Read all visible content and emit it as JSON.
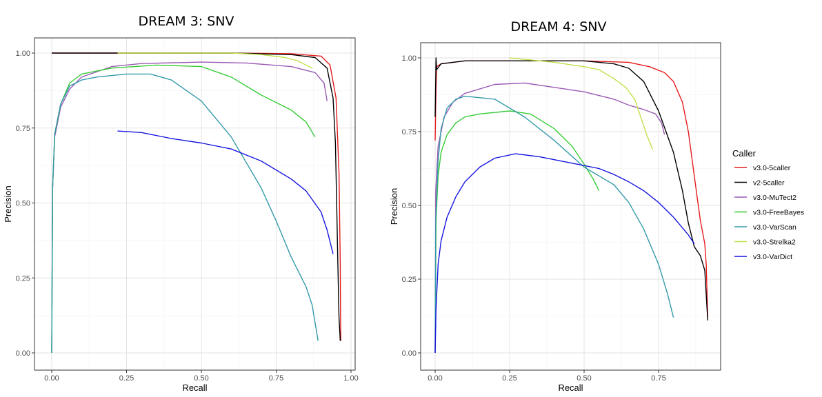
{
  "chart_data": [
    {
      "type": "line",
      "title": "DREAM 3: SNV",
      "xlabel": "Recall",
      "ylabel": "Precision",
      "xlim": [
        0,
        1
      ],
      "ylim": [
        0,
        1
      ],
      "xticks": [
        "0.00",
        "0.25",
        "0.50",
        "0.75",
        "1.00"
      ],
      "yticks": [
        "0.00",
        "0.25",
        "0.50",
        "0.75",
        "1.00"
      ],
      "grid": true,
      "series": [
        {
          "name": "v3.0-5caller",
          "color": "#e41a1c",
          "x": [
            0.0,
            0.3,
            0.6,
            0.8,
            0.9,
            0.93,
            0.95,
            0.96,
            0.962,
            0.964,
            0.965,
            0.966
          ],
          "y": [
            1.0,
            1.0,
            1.0,
            0.998,
            0.99,
            0.96,
            0.85,
            0.6,
            0.45,
            0.3,
            0.15,
            0.04
          ]
        },
        {
          "name": "v2-5caller",
          "color": "#000000",
          "x": [
            0.0,
            0.3,
            0.6,
            0.8,
            0.88,
            0.92,
            0.94,
            0.948,
            0.952,
            0.956,
            0.96,
            0.964
          ],
          "y": [
            1.0,
            1.0,
            1.0,
            0.995,
            0.985,
            0.95,
            0.85,
            0.7,
            0.5,
            0.3,
            0.12,
            0.04
          ]
        },
        {
          "name": "v3.0-MuTect2",
          "color": "#9b59b6",
          "x": [
            0.0,
            0.003,
            0.01,
            0.03,
            0.06,
            0.1,
            0.2,
            0.3,
            0.5,
            0.65,
            0.8,
            0.88,
            0.91,
            0.92
          ],
          "y": [
            0.0,
            0.55,
            0.72,
            0.82,
            0.88,
            0.92,
            0.955,
            0.965,
            0.97,
            0.967,
            0.955,
            0.935,
            0.9,
            0.84
          ]
        },
        {
          "name": "v3.0-FreeBayes",
          "color": "#33cc33",
          "x": [
            0.0,
            0.003,
            0.01,
            0.03,
            0.06,
            0.1,
            0.2,
            0.35,
            0.5,
            0.6,
            0.7,
            0.8,
            0.85,
            0.88
          ],
          "y": [
            0.0,
            0.55,
            0.73,
            0.83,
            0.9,
            0.93,
            0.95,
            0.96,
            0.955,
            0.92,
            0.86,
            0.81,
            0.77,
            0.72
          ]
        },
        {
          "name": "v3.0-VarScan",
          "color": "#3399aa",
          "x": [
            0.0,
            0.003,
            0.01,
            0.03,
            0.06,
            0.1,
            0.15,
            0.25,
            0.33,
            0.4,
            0.5,
            0.6,
            0.7,
            0.75,
            0.8,
            0.85,
            0.87,
            0.88,
            0.89
          ],
          "y": [
            0.0,
            0.55,
            0.73,
            0.83,
            0.89,
            0.91,
            0.92,
            0.93,
            0.93,
            0.91,
            0.84,
            0.72,
            0.55,
            0.44,
            0.32,
            0.22,
            0.16,
            0.1,
            0.04
          ]
        },
        {
          "name": "v3.0-Strelka2",
          "color": "#bfe04a",
          "x": [
            0.22,
            0.4,
            0.6,
            0.7,
            0.78,
            0.82,
            0.85,
            0.87
          ],
          "y": [
            1.0,
            1.0,
            1.0,
            0.995,
            0.985,
            0.975,
            0.96,
            0.95
          ]
        },
        {
          "name": "v3.0-VarDict",
          "color": "#1515e0",
          "x": [
            0.22,
            0.3,
            0.4,
            0.5,
            0.6,
            0.7,
            0.8,
            0.85,
            0.9,
            0.92,
            0.94
          ],
          "y": [
            0.74,
            0.735,
            0.715,
            0.7,
            0.68,
            0.64,
            0.58,
            0.54,
            0.47,
            0.41,
            0.33
          ]
        }
      ]
    },
    {
      "type": "line",
      "title": "DREAM 4: SNV",
      "xlabel": "Recall",
      "ylabel": "Precision",
      "xlim": [
        0,
        1
      ],
      "ylim": [
        0,
        1
      ],
      "xticks": [
        "0.00",
        "0.25",
        "0.50",
        "0.75"
      ],
      "yticks": [
        "0.00",
        "0.25",
        "0.50",
        "0.75",
        "1.00"
      ],
      "grid": true,
      "series": [
        {
          "name": "v3.0-5caller",
          "color": "#e41a1c",
          "x": [
            0.0,
            0.003,
            0.005,
            0.02,
            0.1,
            0.3,
            0.5,
            0.65,
            0.72,
            0.77,
            0.8,
            0.83,
            0.85,
            0.87,
            0.89,
            0.905,
            0.91,
            0.915
          ],
          "y": [
            0.72,
            0.9,
            0.97,
            0.98,
            0.99,
            0.99,
            0.99,
            0.985,
            0.97,
            0.95,
            0.92,
            0.85,
            0.75,
            0.6,
            0.45,
            0.37,
            0.3,
            0.12
          ]
        },
        {
          "name": "v2-5caller",
          "color": "#000000",
          "x": [
            0.0,
            0.003,
            0.005,
            0.02,
            0.1,
            0.3,
            0.5,
            0.6,
            0.65,
            0.7,
            0.75,
            0.8,
            0.83,
            0.85,
            0.87,
            0.89,
            0.905,
            0.915
          ],
          "y": [
            0.8,
            1.0,
            0.96,
            0.98,
            0.99,
            0.99,
            0.99,
            0.98,
            0.965,
            0.92,
            0.82,
            0.68,
            0.55,
            0.44,
            0.36,
            0.33,
            0.28,
            0.11
          ]
        },
        {
          "name": "v3.0-MuTect2",
          "color": "#9b59b6",
          "x": [
            0.0,
            0.002,
            0.01,
            0.03,
            0.06,
            0.1,
            0.2,
            0.3,
            0.4,
            0.5,
            0.6,
            0.65,
            0.7,
            0.74,
            0.76,
            0.77
          ],
          "y": [
            0.0,
            0.55,
            0.7,
            0.8,
            0.85,
            0.88,
            0.91,
            0.915,
            0.9,
            0.885,
            0.86,
            0.84,
            0.825,
            0.81,
            0.78,
            0.74
          ]
        },
        {
          "name": "v3.0-FreeBayes",
          "color": "#33cc33",
          "x": [
            0.0,
            0.003,
            0.01,
            0.02,
            0.04,
            0.07,
            0.1,
            0.15,
            0.25,
            0.32,
            0.4,
            0.46,
            0.5,
            0.53,
            0.55
          ],
          "y": [
            0.0,
            0.45,
            0.6,
            0.68,
            0.74,
            0.78,
            0.8,
            0.81,
            0.82,
            0.81,
            0.76,
            0.7,
            0.64,
            0.59,
            0.55
          ]
        },
        {
          "name": "v3.0-VarScan",
          "color": "#3399aa",
          "x": [
            0.0,
            0.002,
            0.01,
            0.02,
            0.04,
            0.07,
            0.1,
            0.2,
            0.3,
            0.4,
            0.5,
            0.6,
            0.65,
            0.7,
            0.75,
            0.78,
            0.8
          ],
          "y": [
            0.0,
            0.45,
            0.65,
            0.76,
            0.83,
            0.86,
            0.87,
            0.86,
            0.8,
            0.72,
            0.63,
            0.57,
            0.51,
            0.42,
            0.3,
            0.2,
            0.12
          ]
        },
        {
          "name": "v3.0-Strelka2",
          "color": "#bfe04a",
          "x": [
            0.25,
            0.3,
            0.4,
            0.5,
            0.55,
            0.6,
            0.64,
            0.67,
            0.69,
            0.71,
            0.73
          ],
          "y": [
            1.0,
            0.995,
            0.985,
            0.97,
            0.96,
            0.93,
            0.9,
            0.86,
            0.8,
            0.74,
            0.69
          ]
        },
        {
          "name": "v3.0-VarDict",
          "color": "#1515e0",
          "x": [
            0.0,
            0.003,
            0.01,
            0.02,
            0.04,
            0.07,
            0.1,
            0.15,
            0.2,
            0.27,
            0.35,
            0.45,
            0.5,
            0.55,
            0.6,
            0.65,
            0.7,
            0.75,
            0.8,
            0.85,
            0.87
          ],
          "y": [
            0.0,
            0.15,
            0.3,
            0.38,
            0.46,
            0.53,
            0.58,
            0.63,
            0.66,
            0.675,
            0.665,
            0.645,
            0.635,
            0.625,
            0.605,
            0.58,
            0.55,
            0.51,
            0.46,
            0.4,
            0.37
          ]
        }
      ]
    }
  ],
  "legend": {
    "title": "Caller",
    "placement": "right"
  }
}
